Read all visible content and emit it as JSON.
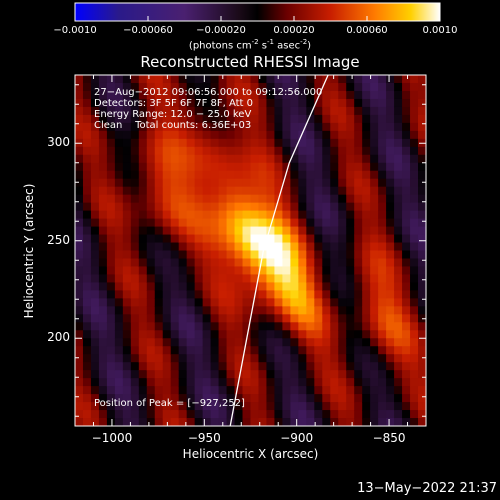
{
  "colorbar": {
    "ticks": [
      "−0.0010",
      "−0.00060",
      "−0.00020",
      "0.00020",
      "0.00060",
      "0.0010"
    ],
    "tick_values": [
      -0.001,
      -0.0006,
      -0.0002,
      0.0002,
      0.0006,
      0.001
    ],
    "range": [
      -0.001,
      0.001
    ],
    "unit_label_parts": [
      "(photons cm",
      "-2",
      " s",
      "-1",
      " asec",
      "-2",
      ")"
    ]
  },
  "chart_data": {
    "type": "heatmap",
    "title": "Reconstructed RHESSI Image",
    "xlabel": "Heliocentric X (arcsec)",
    "ylabel": "Heliocentric Y (arcsec)",
    "xlim": [
      -1020,
      -830
    ],
    "ylim": [
      155,
      335
    ],
    "x_ticks": [
      -1000,
      -950,
      -900,
      -850
    ],
    "x_tick_labels": [
      "−1000",
      "−950",
      "−900",
      "−850"
    ],
    "y_ticks": [
      200,
      250,
      300
    ],
    "y_tick_labels": [
      "200",
      "250",
      "300"
    ],
    "peak_position": [
      -927,
      252
    ],
    "limb_curve": [
      [
        -936,
        155
      ],
      [
        -927,
        200
      ],
      [
        -918,
        245
      ],
      [
        -904,
        290
      ],
      [
        -883,
        335
      ]
    ],
    "bright_sources": [
      {
        "x": -927,
        "y": 252,
        "amplitude": 1.0
      },
      {
        "x": -975,
        "y": 275,
        "amplitude": 0.6
      },
      {
        "x": -907,
        "y": 232,
        "amplitude": 0.7
      },
      {
        "x": -858,
        "y": 212,
        "amplitude": 0.5
      },
      {
        "x": -945,
        "y": 300,
        "amplitude": 0.45
      }
    ]
  },
  "annotations": {
    "line1": "27−Aug−2012 09:06:56.000 to 09:12:56.000",
    "line2": "Detectors: 3F 5F 6F 7F 8F, Att 0",
    "line3": "Energy Range: 12.0 − 25.0 keV",
    "line4": "Clean    Total counts: 6.36E+03",
    "peak": "Position of Peak = [−927,252]"
  },
  "timestamp": "13−May−2022 21:37"
}
